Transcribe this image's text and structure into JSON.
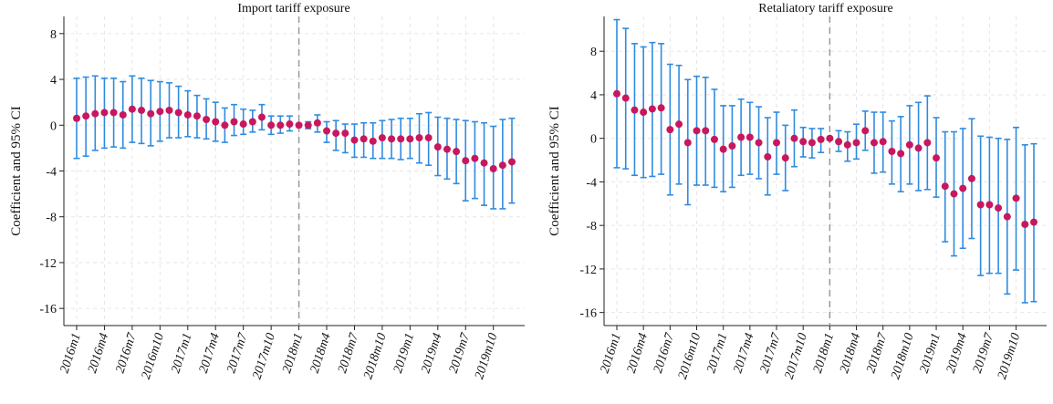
{
  "chart_data": [
    {
      "type": "scatter",
      "title": "Import tariff exposure",
      "ylabel": "Coefficient and 95% CI",
      "xlabel": "",
      "ylim": [
        -17.5,
        9.5
      ],
      "yticks": [
        8,
        4,
        0,
        -4,
        -8,
        -12,
        -16
      ],
      "ytick_labels": [
        "8",
        "4",
        "0",
        "-4",
        "-8",
        "-12",
        "-16"
      ],
      "xticks": [
        "2016m1",
        "2016m4",
        "2016m7",
        "2016m10",
        "2017m1",
        "2017m4",
        "2017m7",
        "2017m10",
        "2018m1",
        "2018m4",
        "2018m7",
        "2018m10",
        "2019m1",
        "2019m4",
        "2019m7",
        "2019m10"
      ],
      "reference_line": "2018m1",
      "grid": true,
      "point_color": "#c8175d",
      "ci_color": "#2f8be0",
      "reference_line_color": "#999999",
      "x": [
        "2016m1",
        "2016m2",
        "2016m3",
        "2016m4",
        "2016m5",
        "2016m6",
        "2016m7",
        "2016m8",
        "2016m9",
        "2016m10",
        "2016m11",
        "2016m12",
        "2017m1",
        "2017m2",
        "2017m3",
        "2017m4",
        "2017m5",
        "2017m6",
        "2017m7",
        "2017m8",
        "2017m9",
        "2017m10",
        "2017m11",
        "2017m12",
        "2018m1",
        "2018m2",
        "2018m3",
        "2018m4",
        "2018m5",
        "2018m6",
        "2018m7",
        "2018m8",
        "2018m9",
        "2018m10",
        "2018m11",
        "2018m12",
        "2019m1",
        "2019m2",
        "2019m3",
        "2019m4",
        "2019m5",
        "2019m6",
        "2019m7",
        "2019m8",
        "2019m9",
        "2019m10",
        "2019m11",
        "2019m12"
      ],
      "series": [
        {
          "estimate": [
            0.6,
            0.8,
            1.0,
            1.1,
            1.1,
            0.9,
            1.4,
            1.3,
            1.0,
            1.2,
            1.3,
            1.1,
            0.9,
            0.8,
            0.5,
            0.3,
            0.0,
            0.3,
            0.1,
            0.3,
            0.7,
            0.0,
            0.0,
            0.1,
            0.0,
            0.0,
            0.2,
            -0.5,
            -0.7,
            -0.7,
            -1.3,
            -1.2,
            -1.4,
            -1.1,
            -1.2,
            -1.2,
            -1.2,
            -1.1,
            -1.1,
            -1.9,
            -2.1,
            -2.3,
            -3.1,
            -2.9,
            -3.3,
            -3.8,
            -3.5,
            -3.2
          ],
          "ci_low": [
            -2.9,
            -2.7,
            -2.2,
            -2.0,
            -1.9,
            -2.0,
            -1.5,
            -1.6,
            -1.8,
            -1.4,
            -1.1,
            -1.1,
            -1.0,
            -1.1,
            -1.2,
            -1.4,
            -1.5,
            -0.9,
            -0.8,
            -0.6,
            -0.4,
            -0.8,
            -0.7,
            -0.5,
            -0.1,
            -0.3,
            -0.6,
            -1.5,
            -2.2,
            -2.4,
            -2.8,
            -2.8,
            -2.9,
            -2.9,
            -2.9,
            -3.0,
            -2.9,
            -3.3,
            -3.5,
            -4.4,
            -4.7,
            -5.1,
            -6.6,
            -6.4,
            -7.0,
            -7.3,
            -7.3,
            -6.8
          ],
          "ci_high": [
            4.1,
            4.2,
            4.3,
            4.1,
            4.1,
            3.8,
            4.3,
            4.1,
            3.9,
            3.8,
            3.7,
            3.4,
            3.0,
            2.6,
            2.3,
            2.0,
            1.5,
            1.8,
            1.4,
            1.3,
            1.8,
            0.8,
            0.8,
            0.8,
            0.0,
            0.3,
            0.9,
            0.3,
            0.4,
            0.1,
            0.1,
            0.2,
            0.2,
            0.4,
            0.5,
            0.6,
            0.6,
            1.0,
            1.1,
            0.7,
            0.6,
            0.5,
            0.4,
            0.3,
            0.2,
            -0.1,
            0.5,
            0.6
          ]
        }
      ]
    },
    {
      "type": "scatter",
      "title": "Retaliatory tariff exposure",
      "ylabel": "Coefficient and 95% CI",
      "xlabel": "",
      "ylim": [
        -17.2,
        11.2
      ],
      "yticks": [
        8,
        4,
        0,
        -4,
        -8,
        -12,
        -16
      ],
      "ytick_labels": [
        "8",
        "4",
        "0",
        "-4",
        "-8",
        "-12",
        "-16"
      ],
      "xticks": [
        "2016m1",
        "2016m4",
        "2016m7",
        "2016m10",
        "2017m1",
        "2017m4",
        "2017m7",
        "2017m10",
        "2018m1",
        "2018m4",
        "2018m7",
        "2018m10",
        "2019m1",
        "2019m4",
        "2019m7",
        "2019m10"
      ],
      "reference_line": "2018m1",
      "grid": true,
      "point_color": "#c8175d",
      "ci_color": "#2f8be0",
      "reference_line_color": "#999999",
      "x": [
        "2016m1",
        "2016m2",
        "2016m3",
        "2016m4",
        "2016m5",
        "2016m6",
        "2016m7",
        "2016m8",
        "2016m9",
        "2016m10",
        "2016m11",
        "2016m12",
        "2017m1",
        "2017m2",
        "2017m3",
        "2017m4",
        "2017m5",
        "2017m6",
        "2017m7",
        "2017m8",
        "2017m9",
        "2017m10",
        "2017m11",
        "2017m12",
        "2018m1",
        "2018m2",
        "2018m3",
        "2018m4",
        "2018m5",
        "2018m6",
        "2018m7",
        "2018m8",
        "2018m9",
        "2018m10",
        "2018m11",
        "2018m12",
        "2019m1",
        "2019m2",
        "2019m3",
        "2019m4",
        "2019m5",
        "2019m6",
        "2019m7",
        "2019m8",
        "2019m9",
        "2019m10",
        "2019m11",
        "2019m12"
      ],
      "series": [
        {
          "estimate": [
            4.1,
            3.7,
            2.6,
            2.4,
            2.7,
            2.8,
            0.8,
            1.3,
            -0.4,
            0.7,
            0.7,
            -0.1,
            -1.0,
            -0.7,
            0.1,
            0.1,
            -0.4,
            -1.7,
            -0.4,
            -1.8,
            0.0,
            -0.3,
            -0.4,
            -0.1,
            0.0,
            -0.3,
            -0.6,
            -0.4,
            0.7,
            -0.4,
            -0.3,
            -1.2,
            -1.4,
            -0.6,
            -0.9,
            -0.4,
            -1.8,
            -4.4,
            -5.1,
            -4.6,
            -3.7,
            -6.1,
            -6.1,
            -6.4,
            -7.2,
            -5.5,
            -7.9,
            -7.7
          ],
          "ci_low": [
            -2.7,
            -2.8,
            -3.4,
            -3.6,
            -3.5,
            -3.3,
            -5.2,
            -4.2,
            -6.1,
            -4.3,
            -4.3,
            -4.5,
            -4.9,
            -4.5,
            -3.4,
            -3.3,
            -3.7,
            -5.2,
            -3.3,
            -4.8,
            -2.6,
            -1.7,
            -1.8,
            -1.3,
            0.0,
            -1.2,
            -2.1,
            -1.9,
            -1.1,
            -3.2,
            -3.1,
            -4.2,
            -4.9,
            -4.2,
            -4.8,
            -4.7,
            -5.4,
            -9.5,
            -10.8,
            -10.1,
            -9.2,
            -12.6,
            -12.4,
            -12.4,
            -14.3,
            -12.1,
            -15.1,
            -15.0
          ],
          "ci_high": [
            10.9,
            10.1,
            8.7,
            8.4,
            8.8,
            8.7,
            6.8,
            6.7,
            5.4,
            5.7,
            5.6,
            4.5,
            3.0,
            3.0,
            3.6,
            3.3,
            2.9,
            1.9,
            2.4,
            1.2,
            2.6,
            1.0,
            0.9,
            0.9,
            0.0,
            0.7,
            0.6,
            1.3,
            2.5,
            2.4,
            2.4,
            1.6,
            2.0,
            3.0,
            3.3,
            3.9,
            1.9,
            0.6,
            0.6,
            0.9,
            1.8,
            0.2,
            0.1,
            0.0,
            -0.1,
            1.0,
            -0.6,
            -0.5
          ]
        }
      ]
    }
  ]
}
